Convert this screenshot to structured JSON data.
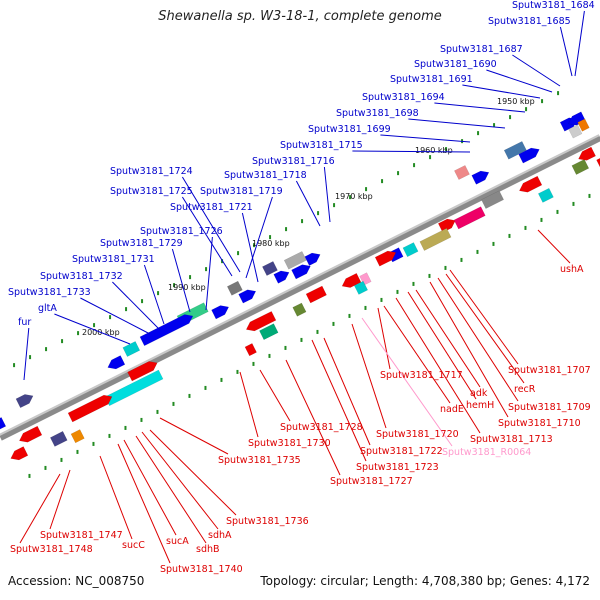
{
  "title": "Shewanella sp. W3-18-1, complete genome",
  "accession": "Accession: NC_008750",
  "summary": "Topology: circular; Length: 4,708,380 bp; Genes: 4,172",
  "colors": {
    "top_label": "#0000cc",
    "bottom_label": "#dd0000",
    "rna_label": "#ff99cc",
    "backbone": "#8a8a8a",
    "tick": "#228b22"
  },
  "scale_labels": [
    {
      "text": "1950 kbp"
    },
    {
      "text": "1960 kbp"
    },
    {
      "text": "1970 kbp"
    },
    {
      "text": "1980 kbp"
    },
    {
      "text": "1990 kbp"
    },
    {
      "text": "2000 kbp"
    }
  ],
  "top_labels": [
    "Sputw3181_1684",
    "Sputw3181_1685",
    "Sputw3181_1687",
    "Sputw3181_1690",
    "Sputw3181_1691",
    "Sputw3181_1694",
    "Sputw3181_1698",
    "Sputw3181_1699",
    "Sputw3181_1715",
    "Sputw3181_1716",
    "Sputw3181_1718",
    "Sputw3181_1724",
    "Sputw3181_1725",
    "Sputw3181_1719",
    "Sputw3181_1721",
    "Sputw3181_1726",
    "Sputw3181_1729",
    "Sputw3181_1731",
    "Sputw3181_1732",
    "Sputw3181_1733",
    "gltA",
    "fur"
  ],
  "bottom_labels": [
    "ushA",
    "Sputw3181_1707",
    "recR",
    "Sputw3181_1709",
    "Sputw3181_1710",
    "adk",
    "hemH",
    "Sputw3181_1713",
    "nadE",
    "Sputw3181_1717",
    "Sputw3181_R0064",
    "Sputw3181_1720",
    "Sputw3181_1722",
    "Sputw3181_1723",
    "Sputw3181_1727",
    "Sputw3181_1728",
    "Sputw3181_1730",
    "Sputw3181_1735",
    "Sputw3181_1736",
    "sdhA",
    "sdhB",
    "sucA",
    "Sputw3181_1740",
    "sucC",
    "Sputw3181_1747",
    "Sputw3181_1748"
  ]
}
